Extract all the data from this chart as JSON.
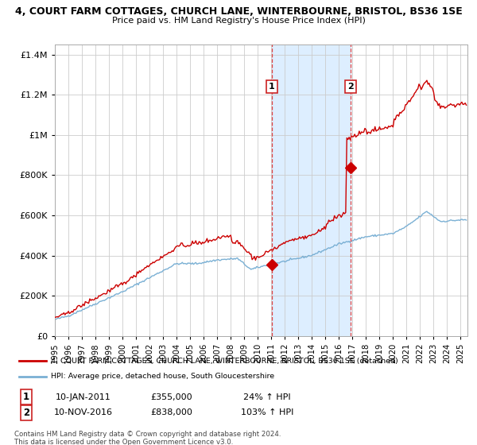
{
  "title": "4, COURT FARM COTTAGES, CHURCH LANE, WINTERBOURNE, BRISTOL, BS36 1SE",
  "subtitle": "Price paid vs. HM Land Registry's House Price Index (HPI)",
  "red_label": "4, COURT FARM COTTAGES, CHURCH LANE, WINTERBOURNE, BRISTOL, BS36 1SE (detached)",
  "blue_label": "HPI: Average price, detached house, South Gloucestershire",
  "annotation1_date": "10-JAN-2011",
  "annotation1_price": "£355,000",
  "annotation1_hpi": "24% ↑ HPI",
  "annotation2_date": "10-NOV-2016",
  "annotation2_price": "£838,000",
  "annotation2_hpi": "103% ↑ HPI",
  "event1_x": 2011.04,
  "event1_y": 355000,
  "event2_x": 2016.87,
  "event2_y": 838000,
  "ylim": [
    0,
    1450000
  ],
  "xlim_start": 1995.0,
  "xlim_end": 2025.5,
  "background_color": "#ffffff",
  "plot_bg_color": "#ffffff",
  "shading_color": "#ddeeff",
  "grid_color": "#cccccc",
  "red_line_color": "#cc0000",
  "blue_line_color": "#7ab0d4",
  "dashed_line_color": "#dd4444",
  "marker_color": "#cc0000",
  "footnote": "Contains HM Land Registry data © Crown copyright and database right 2024.\nThis data is licensed under the Open Government Licence v3.0."
}
